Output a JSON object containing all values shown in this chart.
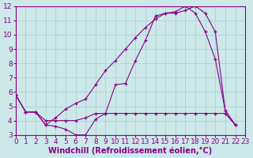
{
  "xlabel": "Windchill (Refroidissement éolien,°C)",
  "bg_color": "#cce8e8",
  "line_color": "#880088",
  "grid_color": "#aacccc",
  "xlim": [
    0,
    23
  ],
  "ylim": [
    3,
    12
  ],
  "xticks": [
    0,
    1,
    2,
    3,
    4,
    5,
    6,
    7,
    8,
    9,
    10,
    11,
    12,
    13,
    14,
    15,
    16,
    17,
    18,
    19,
    20,
    21,
    22,
    23
  ],
  "yticks": [
    3,
    4,
    5,
    6,
    7,
    8,
    9,
    10,
    11,
    12
  ],
  "line1_x": [
    0,
    1,
    2,
    3,
    4,
    5,
    6,
    7,
    8,
    9,
    10,
    11,
    12,
    13,
    14,
    15,
    16,
    17,
    18,
    19,
    20,
    21,
    22
  ],
  "line1_y": [
    5.8,
    4.6,
    4.6,
    3.7,
    3.6,
    3.4,
    3.0,
    3.0,
    4.1,
    4.5,
    6.5,
    6.6,
    8.2,
    9.6,
    11.3,
    11.5,
    11.6,
    12.0,
    11.5,
    10.2,
    8.3,
    4.7,
    3.7
  ],
  "line2_x": [
    0,
    1,
    2,
    3,
    4,
    5,
    6,
    7,
    8,
    9,
    10,
    11,
    12,
    13,
    14,
    15,
    16,
    17,
    18,
    19,
    20,
    21,
    22
  ],
  "line2_y": [
    5.8,
    4.6,
    4.6,
    4.0,
    4.0,
    4.0,
    4.0,
    4.2,
    4.5,
    4.5,
    4.5,
    4.5,
    4.5,
    4.5,
    4.5,
    4.5,
    4.5,
    4.5,
    4.5,
    4.5,
    4.5,
    4.5,
    3.7
  ],
  "line3_x": [
    0,
    1,
    2,
    3,
    4,
    5,
    6,
    7,
    8,
    9,
    10,
    11,
    12,
    13,
    14,
    15,
    16,
    17,
    18,
    19,
    20,
    21,
    22
  ],
  "line3_y": [
    5.8,
    4.6,
    4.6,
    3.7,
    4.2,
    4.8,
    5.2,
    5.5,
    6.5,
    7.5,
    8.2,
    9.0,
    9.8,
    10.5,
    11.1,
    11.5,
    11.5,
    11.7,
    12.0,
    11.5,
    10.2,
    4.7,
    3.7
  ],
  "font_size_ticks": 6.5,
  "font_size_label": 7
}
